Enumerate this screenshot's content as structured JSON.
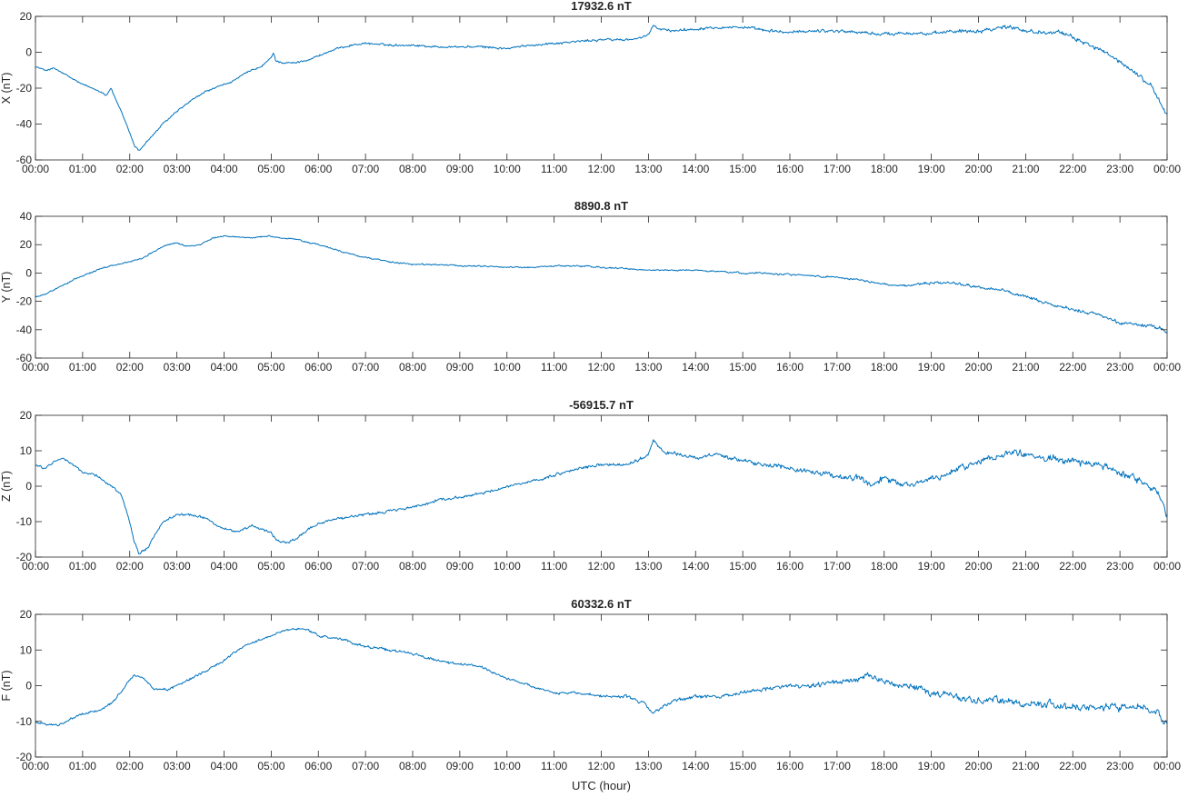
{
  "chart_data": [
    {
      "type": "line",
      "title": "17932.6 nT",
      "ylabel": "X (nT)",
      "xlabel": "",
      "xlim": [
        0,
        24
      ],
      "ylim": [
        -60,
        20
      ],
      "yticks": [
        "-60",
        "-40",
        "-20",
        "0",
        "20"
      ],
      "xticks": [
        "00:00",
        "01:00",
        "02:00",
        "03:00",
        "04:00",
        "05:00",
        "06:00",
        "07:00",
        "08:00",
        "09:00",
        "10:00",
        "11:00",
        "12:00",
        "13:00",
        "14:00",
        "15:00",
        "16:00",
        "17:00",
        "18:00",
        "19:00",
        "20:00",
        "21:00",
        "22:00",
        "23:00",
        "00:00"
      ],
      "color": "#0072bd",
      "noise": [
        0.6,
        0.6,
        0.8,
        0.9,
        1.0,
        1.2,
        1.4,
        1.5,
        1.5
      ],
      "noise_hours": [
        0,
        4,
        12,
        13,
        16,
        18,
        20,
        21,
        24
      ],
      "x": [
        0,
        0.2,
        0.4,
        0.6,
        0.8,
        1.0,
        1.2,
        1.4,
        1.5,
        1.6,
        1.8,
        2.0,
        2.1,
        2.2,
        2.35,
        2.5,
        2.7,
        3.0,
        3.3,
        3.6,
        3.9,
        4.2,
        4.5,
        4.8,
        5.0,
        5.05,
        5.1,
        5.3,
        5.5,
        5.8,
        6.1,
        6.4,
        6.7,
        7.0,
        7.5,
        8.0,
        8.5,
        9.0,
        9.5,
        10.0,
        10.5,
        11.0,
        11.5,
        12.0,
        12.5,
        12.9,
        13.0,
        13.1,
        13.2,
        13.5,
        14.0,
        14.3,
        14.6,
        15.0,
        15.5,
        16.0,
        16.5,
        17.0,
        17.5,
        18.0,
        18.5,
        19.0,
        19.5,
        20.0,
        20.5,
        20.8,
        21.0,
        21.3,
        21.6,
        22.0,
        22.3,
        22.6,
        22.9,
        23.2,
        23.5,
        23.7,
        23.85,
        24.0
      ],
      "values": [
        -8,
        -10,
        -9,
        -12,
        -15,
        -18,
        -20,
        -22,
        -24,
        -20,
        -32,
        -45,
        -52,
        -55,
        -50,
        -46,
        -40,
        -33,
        -27,
        -22,
        -19,
        -16,
        -11,
        -8,
        -3,
        0,
        -5,
        -6,
        -6,
        -4,
        -1,
        2,
        4,
        5,
        4,
        4,
        3,
        3,
        3,
        2,
        4,
        5,
        6,
        7,
        7,
        8,
        10,
        15,
        13,
        12,
        13,
        14,
        14,
        14,
        12,
        11,
        12,
        12,
        11,
        10,
        11,
        10,
        12,
        12,
        14,
        14,
        12,
        11,
        12,
        8,
        5,
        1,
        -4,
        -9,
        -15,
        -20,
        -28,
        -35
      ]
    },
    {
      "type": "line",
      "title": "8890.8 nT",
      "ylabel": "Y (nT)",
      "xlabel": "",
      "xlim": [
        0,
        24
      ],
      "ylim": [
        -60,
        40
      ],
      "yticks": [
        "-60",
        "-40",
        "-20",
        "0",
        "20",
        "40"
      ],
      "xticks": [
        "00:00",
        "01:00",
        "02:00",
        "03:00",
        "04:00",
        "05:00",
        "06:00",
        "07:00",
        "08:00",
        "09:00",
        "10:00",
        "11:00",
        "12:00",
        "13:00",
        "14:00",
        "15:00",
        "16:00",
        "17:00",
        "18:00",
        "19:00",
        "20:00",
        "21:00",
        "22:00",
        "23:00",
        "00:00"
      ],
      "color": "#0072bd",
      "noise": [
        0.6,
        0.6,
        0.7,
        0.8,
        1.0,
        1.3,
        1.5
      ],
      "noise_hours": [
        0,
        5,
        13,
        17,
        19,
        21,
        24
      ],
      "x": [
        0,
        0.2,
        0.5,
        0.8,
        1.0,
        1.3,
        1.6,
        2.0,
        2.3,
        2.5,
        2.8,
        3.0,
        3.2,
        3.5,
        3.8,
        4.0,
        4.5,
        5.0,
        5.1,
        5.5,
        6.0,
        6.5,
        7.0,
        7.5,
        8.0,
        8.5,
        9.0,
        9.5,
        10.0,
        10.5,
        11.0,
        11.5,
        12.0,
        12.5,
        13.0,
        13.5,
        14.0,
        14.5,
        15.0,
        15.5,
        16.0,
        16.5,
        17.0,
        17.5,
        18.0,
        18.5,
        19.0,
        19.5,
        20.0,
        20.5,
        21.0,
        21.5,
        22.0,
        22.5,
        23.0,
        23.5,
        23.8,
        24.0
      ],
      "values": [
        -17,
        -15,
        -10,
        -5,
        -2,
        2,
        5,
        8,
        11,
        15,
        20,
        21,
        19,
        20,
        25,
        26,
        25,
        26,
        25,
        24,
        20,
        15,
        11,
        8,
        6,
        6,
        5,
        5,
        4,
        4,
        5,
        5,
        4,
        3,
        2,
        2,
        2,
        1,
        0,
        0,
        -1,
        -2,
        -3,
        -5,
        -8,
        -9,
        -7,
        -7,
        -10,
        -12,
        -17,
        -22,
        -26,
        -29,
        -35,
        -37,
        -38,
        -42
      ]
    },
    {
      "type": "line",
      "title": "-56915.7 nT",
      "ylabel": "Z (nT)",
      "xlabel": "",
      "xlim": [
        0,
        24
      ],
      "ylim": [
        -20,
        20
      ],
      "yticks": [
        "-20",
        "-10",
        "0",
        "10",
        "20"
      ],
      "xticks": [
        "00:00",
        "01:00",
        "02:00",
        "03:00",
        "04:00",
        "05:00",
        "06:00",
        "07:00",
        "08:00",
        "09:00",
        "10:00",
        "11:00",
        "12:00",
        "13:00",
        "14:00",
        "15:00",
        "16:00",
        "17:00",
        "18:00",
        "19:00",
        "20:00",
        "21:00",
        "22:00",
        "23:00",
        "00:00"
      ],
      "color": "#0072bd",
      "noise": [
        0.4,
        0.45,
        0.55,
        0.9,
        1.1,
        1.0,
        1.4,
        1.2
      ],
      "noise_hours": [
        0,
        5,
        13,
        16.5,
        18,
        20,
        21.5,
        24
      ],
      "x": [
        0,
        0.2,
        0.4,
        0.6,
        0.8,
        1.0,
        1.3,
        1.6,
        1.8,
        2.0,
        2.1,
        2.2,
        2.4,
        2.7,
        3.0,
        3.3,
        3.6,
        4.0,
        4.3,
        4.6,
        5.0,
        5.1,
        5.3,
        5.5,
        5.8,
        6.1,
        6.5,
        7.0,
        7.5,
        8.0,
        8.5,
        9.0,
        9.5,
        10.0,
        10.5,
        11.0,
        11.5,
        12.0,
        12.5,
        12.9,
        13.0,
        13.1,
        13.3,
        13.6,
        14.0,
        14.5,
        15.0,
        15.5,
        16.0,
        16.5,
        17.0,
        17.5,
        17.7,
        18.0,
        18.5,
        19.0,
        19.3,
        19.6,
        20.0,
        20.5,
        20.8,
        21.0,
        21.5,
        22.0,
        22.5,
        23.0,
        23.5,
        23.75,
        23.9,
        24.0
      ],
      "values": [
        6,
        5,
        7,
        8,
        6,
        4,
        3,
        0,
        -2,
        -10,
        -16,
        -19,
        -17,
        -10,
        -8,
        -8,
        -9,
        -12,
        -13,
        -11,
        -13,
        -15,
        -16,
        -15,
        -12,
        -10,
        -9,
        -8,
        -7,
        -6,
        -4,
        -3,
        -2,
        0,
        1,
        3,
        5,
        6,
        6,
        8,
        9,
        13,
        10,
        9,
        8,
        9,
        7,
        6,
        5,
        4,
        3,
        2,
        0,
        2,
        0,
        2,
        3,
        5,
        7,
        9,
        10,
        9,
        8,
        7,
        6,
        4,
        1,
        -1,
        -5,
        -9
      ]
    },
    {
      "type": "line",
      "title": "60332.6 nT",
      "ylabel": "F (nT)",
      "xlabel": "UTC (hour)",
      "xlim": [
        0,
        24
      ],
      "ylim": [
        -20,
        20
      ],
      "yticks": [
        "-20",
        "-10",
        "0",
        "10",
        "20"
      ],
      "xticks": [
        "00:00",
        "01:00",
        "02:00",
        "03:00",
        "04:00",
        "05:00",
        "06:00",
        "07:00",
        "08:00",
        "09:00",
        "10:00",
        "11:00",
        "12:00",
        "13:00",
        "14:00",
        "15:00",
        "16:00",
        "17:00",
        "18:00",
        "19:00",
        "20:00",
        "21:00",
        "22:00",
        "23:00",
        "00:00"
      ],
      "color": "#0072bd",
      "noise": [
        0.4,
        0.4,
        0.5,
        0.7,
        0.9,
        1.1,
        1.3,
        1.3
      ],
      "noise_hours": [
        0,
        5,
        12,
        16,
        17.5,
        19,
        21,
        24
      ],
      "x": [
        0,
        0.2,
        0.5,
        0.8,
        1.0,
        1.3,
        1.6,
        1.8,
        2.0,
        2.1,
        2.3,
        2.5,
        2.8,
        3.0,
        3.3,
        3.6,
        4.0,
        4.3,
        4.6,
        5.0,
        5.2,
        5.4,
        5.7,
        6.0,
        6.5,
        7.0,
        7.5,
        8.0,
        8.5,
        9.0,
        9.5,
        10.0,
        10.5,
        11.0,
        11.5,
        12.0,
        12.5,
        12.9,
        13.0,
        13.1,
        13.3,
        13.6,
        14.0,
        14.5,
        15.0,
        15.5,
        16.0,
        16.5,
        17.0,
        17.5,
        17.7,
        18.0,
        18.5,
        19.0,
        19.5,
        20.0,
        20.5,
        21.0,
        21.5,
        22.0,
        22.5,
        23.0,
        23.5,
        23.8,
        24.0
      ],
      "values": [
        -10,
        -11,
        -11,
        -9,
        -8,
        -7,
        -5,
        -2,
        2,
        3,
        2,
        -1,
        -1,
        0,
        2,
        4,
        7,
        10,
        12,
        14,
        15,
        16,
        16,
        14,
        13,
        11,
        10,
        9,
        7,
        6,
        5,
        2,
        0,
        -2,
        -2,
        -3,
        -3,
        -5,
        -6,
        -8,
        -6,
        -4,
        -3,
        -3,
        -2,
        -1,
        0,
        0,
        1,
        2,
        3,
        1,
        0,
        -2,
        -3,
        -4,
        -4,
        -5,
        -5,
        -6,
        -6,
        -6,
        -6,
        -8,
        -10
      ]
    }
  ]
}
